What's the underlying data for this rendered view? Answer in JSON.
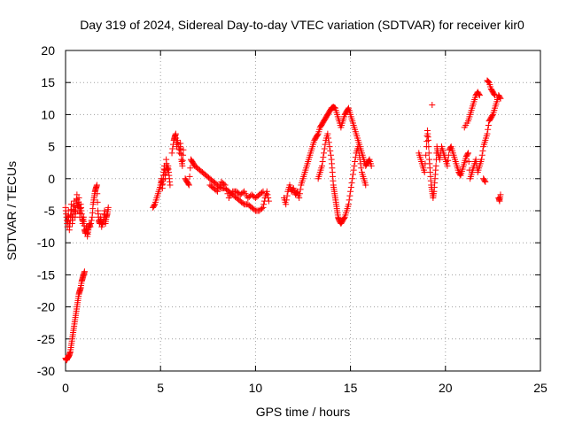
{
  "chart_data": {
    "type": "scatter",
    "title": "Day 319 of 2024, Sidereal Day-to-day VTEC variation (SDTVAR) for receiver kir0",
    "xlabel": "GPS time / hours",
    "ylabel": "SDTVAR / TECUs",
    "xlim": [
      0,
      25
    ],
    "ylim": [
      -30,
      20
    ],
    "xticks": [
      "0",
      "5",
      "10",
      "15",
      "20",
      "25"
    ],
    "yticks": [
      "20",
      "15",
      "10",
      "5",
      "0",
      "-5",
      "-10",
      "-15",
      "-20",
      "-25",
      "-30"
    ],
    "grid": true,
    "series": [
      {
        "name": "kir0",
        "color": "#ff0000",
        "marker": "plus",
        "points": [
          [
            0.0,
            -4.5
          ],
          [
            0.05,
            -6
          ],
          [
            0.1,
            -7.5
          ],
          [
            0.15,
            -5
          ],
          [
            0.2,
            -8
          ],
          [
            0.25,
            -6.5
          ],
          [
            0.3,
            -4
          ],
          [
            0.35,
            -7
          ],
          [
            0.4,
            -5.5
          ],
          [
            0.45,
            -3.5
          ],
          [
            0.5,
            -6
          ],
          [
            0.55,
            -4.5
          ],
          [
            0.6,
            -2.5
          ],
          [
            0.65,
            -5
          ],
          [
            0.7,
            -3
          ],
          [
            0.75,
            -6
          ],
          [
            0.8,
            -4
          ],
          [
            0.85,
            -5.5
          ],
          [
            0.9,
            -7
          ],
          [
            0.95,
            -6
          ],
          [
            1.0,
            -8
          ],
          [
            1.05,
            -8.5
          ],
          [
            1.1,
            -7.5
          ],
          [
            1.15,
            -9
          ],
          [
            1.2,
            -8
          ],
          [
            1.25,
            -7
          ],
          [
            1.3,
            -7.5
          ],
          [
            1.4,
            -6
          ],
          [
            1.45,
            -4
          ],
          [
            1.5,
            -3
          ],
          [
            1.55,
            -2
          ],
          [
            1.6,
            -1.5
          ],
          [
            1.65,
            -1
          ],
          [
            1.7,
            -5
          ],
          [
            1.75,
            -6.5
          ],
          [
            1.8,
            -7
          ],
          [
            1.85,
            -6
          ],
          [
            1.9,
            -7.5
          ],
          [
            2.0,
            -6.5
          ],
          [
            2.05,
            -5
          ],
          [
            2.1,
            -7
          ],
          [
            2.15,
            -6
          ],
          [
            2.2,
            -5.5
          ],
          [
            2.25,
            -4.5
          ],
          [
            0.0,
            -28
          ],
          [
            0.05,
            -28.3
          ],
          [
            0.1,
            -28
          ],
          [
            0.15,
            -27.8
          ],
          [
            0.2,
            -27.5
          ],
          [
            0.25,
            -27
          ],
          [
            0.3,
            -26
          ],
          [
            0.35,
            -25
          ],
          [
            0.4,
            -24
          ],
          [
            0.45,
            -23
          ],
          [
            0.5,
            -22
          ],
          [
            0.55,
            -21
          ],
          [
            0.6,
            -20
          ],
          [
            0.65,
            -19
          ],
          [
            0.7,
            -18
          ],
          [
            0.75,
            -17.5
          ],
          [
            0.8,
            -17
          ],
          [
            0.85,
            -16
          ],
          [
            0.9,
            -15.5
          ],
          [
            0.95,
            -15
          ],
          [
            1.0,
            -14.5
          ],
          [
            4.6,
            -4.5
          ],
          [
            4.7,
            -4
          ],
          [
            4.8,
            -3
          ],
          [
            4.9,
            -2
          ],
          [
            5.0,
            -1
          ],
          [
            5.05,
            0
          ],
          [
            5.1,
            -1.5
          ],
          [
            5.15,
            0.5
          ],
          [
            5.2,
            2
          ],
          [
            5.25,
            0
          ],
          [
            5.3,
            3
          ],
          [
            5.35,
            1
          ],
          [
            5.4,
            2
          ],
          [
            5.45,
            0.5
          ],
          [
            5.5,
            -1
          ],
          [
            5.6,
            4
          ],
          [
            5.7,
            6
          ],
          [
            5.75,
            6.5
          ],
          [
            5.8,
            7
          ],
          [
            5.85,
            5
          ],
          [
            5.9,
            6
          ],
          [
            6.0,
            4
          ],
          [
            6.05,
            5.5
          ],
          [
            6.1,
            3
          ],
          [
            6.15,
            2
          ],
          [
            6.2,
            4.5
          ],
          [
            6.3,
            0
          ],
          [
            6.4,
            -0.5
          ],
          [
            6.5,
            -1
          ],
          [
            6.6,
            3
          ],
          [
            6.7,
            2.5
          ],
          [
            6.8,
            2
          ],
          [
            7.0,
            1.5
          ],
          [
            7.2,
            1
          ],
          [
            7.4,
            0.5
          ],
          [
            7.6,
            0
          ],
          [
            7.8,
            -0.5
          ],
          [
            8.0,
            -1
          ],
          [
            8.2,
            -1.5
          ],
          [
            8.4,
            -1.5
          ],
          [
            8.6,
            -2
          ],
          [
            8.8,
            -2.5
          ],
          [
            9.0,
            -3
          ],
          [
            9.2,
            -3.5
          ],
          [
            9.4,
            -4
          ],
          [
            9.6,
            -4
          ],
          [
            9.8,
            -4.5
          ],
          [
            10.0,
            -5
          ],
          [
            10.2,
            -5
          ],
          [
            10.4,
            -4.5
          ],
          [
            10.5,
            -3
          ],
          [
            10.6,
            -2
          ],
          [
            10.7,
            -3.5
          ],
          [
            7.6,
            -1
          ],
          [
            7.8,
            -1.5
          ],
          [
            8.0,
            -2
          ],
          [
            8.2,
            -0.5
          ],
          [
            8.4,
            -1
          ],
          [
            8.6,
            -3
          ],
          [
            8.8,
            -2
          ],
          [
            9.0,
            -2
          ],
          [
            9.2,
            -2.5
          ],
          [
            9.4,
            -2
          ],
          [
            9.6,
            -3
          ],
          [
            9.8,
            -2.5
          ],
          [
            10.0,
            -3
          ],
          [
            10.2,
            -2.5
          ],
          [
            10.4,
            -2
          ],
          [
            11.5,
            -3
          ],
          [
            11.6,
            -4
          ],
          [
            11.7,
            -2
          ],
          [
            11.8,
            -1
          ],
          [
            11.9,
            -2
          ],
          [
            12.0,
            -1.5
          ],
          [
            12.1,
            -2.5
          ],
          [
            12.2,
            -2
          ],
          [
            12.3,
            -3
          ],
          [
            12.4,
            -1
          ],
          [
            12.5,
            0
          ],
          [
            12.6,
            1
          ],
          [
            12.7,
            2
          ],
          [
            12.8,
            3
          ],
          [
            12.9,
            4
          ],
          [
            13.0,
            5
          ],
          [
            13.1,
            6
          ],
          [
            13.2,
            6.5
          ],
          [
            13.3,
            7
          ],
          [
            13.4,
            8
          ],
          [
            13.5,
            8.5
          ],
          [
            13.6,
            9
          ],
          [
            13.7,
            9.5
          ],
          [
            13.8,
            10
          ],
          [
            13.9,
            10.5
          ],
          [
            14.0,
            11
          ],
          [
            14.1,
            11.2
          ],
          [
            14.2,
            11
          ],
          [
            14.3,
            10
          ],
          [
            14.4,
            9
          ],
          [
            14.5,
            8
          ],
          [
            14.6,
            9
          ],
          [
            14.7,
            10
          ],
          [
            14.8,
            10.5
          ],
          [
            14.9,
            11
          ],
          [
            15.0,
            10
          ],
          [
            15.1,
            9
          ],
          [
            15.2,
            8
          ],
          [
            15.3,
            7
          ],
          [
            15.4,
            6
          ],
          [
            15.5,
            5
          ],
          [
            15.6,
            4
          ],
          [
            15.7,
            3
          ],
          [
            15.8,
            2
          ],
          [
            15.9,
            2.5
          ],
          [
            16.0,
            3
          ],
          [
            16.1,
            2
          ],
          [
            13.3,
            0
          ],
          [
            13.4,
            1
          ],
          [
            13.5,
            2
          ],
          [
            13.6,
            4
          ],
          [
            13.7,
            6
          ],
          [
            13.8,
            7
          ],
          [
            13.9,
            5
          ],
          [
            14.0,
            3
          ],
          [
            14.05,
            1
          ],
          [
            14.1,
            -1
          ],
          [
            14.15,
            -2
          ],
          [
            14.2,
            -3
          ],
          [
            14.25,
            -4
          ],
          [
            14.3,
            -5
          ],
          [
            14.35,
            -6
          ],
          [
            14.4,
            -6.5
          ],
          [
            14.5,
            -7
          ],
          [
            14.6,
            -6.5
          ],
          [
            14.7,
            -6
          ],
          [
            14.8,
            -5
          ],
          [
            14.9,
            -4
          ],
          [
            15.0,
            -2
          ],
          [
            15.1,
            0
          ],
          [
            15.2,
            2
          ],
          [
            15.3,
            4
          ],
          [
            15.4,
            5
          ],
          [
            15.5,
            3
          ],
          [
            15.6,
            1
          ],
          [
            15.7,
            0
          ],
          [
            15.8,
            -1
          ],
          [
            18.6,
            4
          ],
          [
            18.7,
            3
          ],
          [
            18.8,
            2
          ],
          [
            18.9,
            1
          ],
          [
            19.0,
            5
          ],
          [
            19.05,
            7.5
          ],
          [
            19.1,
            6
          ],
          [
            19.15,
            3
          ],
          [
            19.2,
            1
          ],
          [
            19.25,
            -1
          ],
          [
            19.3,
            -2
          ],
          [
            19.35,
            -3
          ],
          [
            19.4,
            -2
          ],
          [
            19.45,
            0
          ],
          [
            19.5,
            2
          ],
          [
            19.55,
            5
          ],
          [
            19.6,
            4
          ],
          [
            19.7,
            3
          ],
          [
            19.8,
            5
          ],
          [
            19.9,
            4
          ],
          [
            20.0,
            3
          ],
          [
            20.1,
            2
          ],
          [
            20.2,
            4.5
          ],
          [
            20.3,
            5
          ],
          [
            20.4,
            4
          ],
          [
            20.5,
            3
          ],
          [
            20.6,
            2
          ],
          [
            20.7,
            1
          ],
          [
            20.8,
            0.5
          ],
          [
            20.9,
            1.5
          ],
          [
            21.0,
            2.5
          ],
          [
            21.1,
            3.5
          ],
          [
            21.2,
            4
          ],
          [
            21.3,
            0
          ],
          [
            21.4,
            1
          ],
          [
            21.5,
            2
          ],
          [
            21.6,
            3
          ],
          [
            21.7,
            1
          ],
          [
            21.8,
            2
          ],
          [
            21.9,
            3
          ],
          [
            22.0,
            5
          ],
          [
            22.1,
            6
          ],
          [
            22.2,
            7
          ],
          [
            22.3,
            9
          ],
          [
            22.4,
            9.5
          ],
          [
            22.5,
            10
          ],
          [
            22.6,
            11
          ],
          [
            22.7,
            12
          ],
          [
            22.8,
            13
          ],
          [
            22.9,
            12.5
          ],
          [
            19.3,
            11.5
          ],
          [
            21.0,
            8
          ],
          [
            21.2,
            9
          ],
          [
            21.3,
            10
          ],
          [
            21.4,
            11
          ],
          [
            21.5,
            12
          ],
          [
            21.6,
            13
          ],
          [
            21.7,
            13.5
          ],
          [
            21.8,
            13
          ],
          [
            22.2,
            15.3
          ],
          [
            22.3,
            15
          ],
          [
            22.4,
            14
          ],
          [
            22.5,
            13.5
          ],
          [
            22.6,
            13
          ],
          [
            22.8,
            -3
          ],
          [
            22.85,
            -3.5
          ],
          [
            22.9,
            -2.5
          ],
          [
            22.0,
            0
          ],
          [
            22.1,
            -0.5
          ]
        ]
      }
    ]
  }
}
